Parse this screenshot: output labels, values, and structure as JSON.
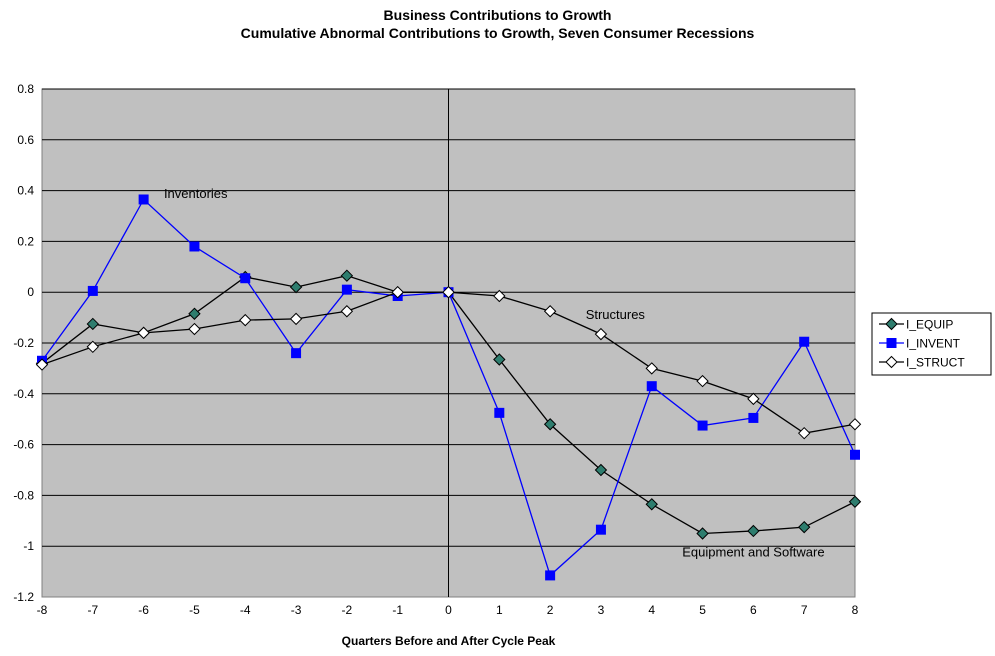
{
  "chart_data": {
    "type": "line",
    "title": "Business Contributions to Growth",
    "subtitle": "Cumulative Abnormal Contributions to Growth, Seven Consumer Recessions",
    "xlabel": "Quarters Before and After Cycle Peak",
    "ylabel": "",
    "x": [
      -8,
      -7,
      -6,
      -5,
      -4,
      -3,
      -2,
      -1,
      0,
      1,
      2,
      3,
      4,
      5,
      6,
      7,
      8
    ],
    "xlim": [
      -8,
      8
    ],
    "ylim": [
      -1.2,
      0.8
    ],
    "yticks": [
      0.8,
      0.6,
      0.4,
      0.2,
      0,
      -0.2,
      -0.4,
      -0.6,
      -0.8,
      -1,
      -1.2
    ],
    "ytick_labels": [
      "0.8",
      "0.6",
      "0.4",
      "0.2",
      "0",
      "-0.2",
      "-0.4",
      "-0.6",
      "-0.8",
      "-1",
      "-1.2"
    ],
    "xtick_labels": [
      "-8",
      "-7",
      "-6",
      "-5",
      "-4",
      "-3",
      "-2",
      "-1",
      "0",
      "1",
      "2",
      "3",
      "4",
      "5",
      "6",
      "7",
      "8"
    ],
    "grid": "horizontal",
    "plot_background": "#c0c0c0",
    "legend_position": "right",
    "series": [
      {
        "name": "I_EQUIP",
        "color": "#000000",
        "marker": "diamond-filled",
        "marker_fill": "#2e7d6e",
        "values": [
          -0.28,
          -0.125,
          -0.16,
          -0.085,
          0.06,
          0.02,
          0.065,
          0.0,
          0.0,
          -0.265,
          -0.52,
          -0.7,
          -0.835,
          -0.95,
          -0.94,
          -0.925,
          -0.825
        ]
      },
      {
        "name": "I_INVENT",
        "color": "#0000ff",
        "marker": "square-filled",
        "marker_fill": "#0000ff",
        "values": [
          -0.27,
          0.005,
          0.365,
          0.18,
          0.055,
          -0.24,
          0.01,
          -0.015,
          0.0,
          -0.475,
          -1.115,
          -0.935,
          -0.37,
          -0.525,
          -0.495,
          -0.195,
          -0.64
        ]
      },
      {
        "name": "I_STRUCT",
        "color": "#000000",
        "marker": "diamond-open",
        "marker_fill": "#ffffff",
        "values": [
          -0.285,
          -0.215,
          -0.16,
          -0.145,
          -0.11,
          -0.105,
          -0.075,
          0.0,
          0.0,
          -0.015,
          -0.075,
          -0.165,
          -0.3,
          -0.35,
          -0.42,
          -0.555,
          -0.52
        ]
      }
    ],
    "annotations": [
      {
        "text": "Inventories",
        "x": -5.6,
        "y": 0.37
      },
      {
        "text": "Structures",
        "x": 2.7,
        "y": -0.105
      },
      {
        "text": "Equipment and Software",
        "x": 4.6,
        "y": -1.04
      }
    ]
  }
}
